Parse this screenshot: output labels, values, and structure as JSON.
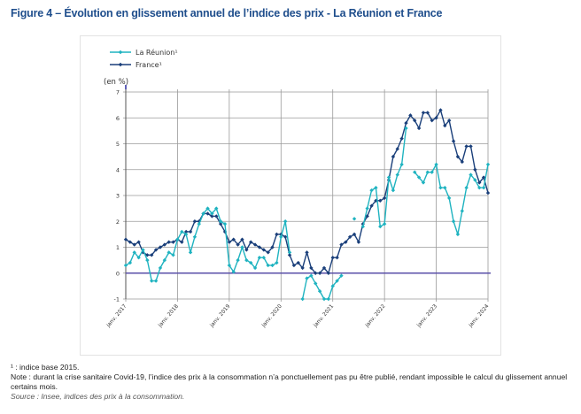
{
  "figure": {
    "title": "Figure 4 – Évolution en glissement annuel de l’indice des prix - La Réunion et France",
    "footnote": "¹ : indice base 2015.",
    "note": "Note : durant la crise sanitaire Covid-19, l’indice des prix à la consommation n’a ponctuellement pas pu être publié, rendant impossible le calcul du glissement annuel certains mois.",
    "source": "Source : Insee, indices des prix à la consommation."
  },
  "chart_data": {
    "type": "line",
    "title": "Évolution en glissement annuel de l’indice des prix - La Réunion et France",
    "ylabel": "(en %)",
    "xlabel": "",
    "ylim": [
      -1,
      7
    ],
    "yticks": [
      -1,
      0,
      1,
      2,
      3,
      4,
      5,
      6,
      7
    ],
    "xticks": [
      "janv. 2017",
      "janv. 2018",
      "janv. 2019",
      "janv. 2020",
      "janv. 2021",
      "janv. 2022",
      "janv. 2023",
      "janv. 2024"
    ],
    "x_start": "2017-01",
    "x_frequency": "monthly",
    "grid": true,
    "legend": "top-left",
    "series": [
      {
        "name": "La Réunion¹",
        "color": "#1fb3c0",
        "values": [
          0.3,
          0.4,
          0.8,
          0.6,
          0.9,
          0.5,
          -0.3,
          -0.3,
          0.2,
          0.5,
          0.8,
          0.7,
          1.3,
          1.6,
          1.5,
          0.8,
          1.4,
          1.9,
          2.3,
          2.5,
          2.3,
          2.5,
          2.0,
          1.9,
          0.3,
          0.05,
          0.5,
          1.0,
          0.5,
          0.4,
          0.2,
          0.6,
          0.6,
          0.3,
          0.3,
          0.4,
          1.4,
          2.0,
          0.8,
          null,
          null,
          -1.0,
          -0.2,
          -0.1,
          -0.4,
          -0.7,
          -1.0,
          -1.0,
          -0.5,
          -0.3,
          -0.1,
          null,
          null,
          2.1,
          null,
          1.8,
          2.5,
          3.2,
          3.3,
          1.8,
          1.9,
          3.7,
          3.2,
          3.8,
          4.2,
          5.6,
          null,
          3.9,
          3.7,
          3.5,
          3.9,
          3.9,
          4.2,
          3.3,
          3.3,
          2.9,
          2.0,
          1.5,
          2.4,
          3.3,
          3.8,
          3.6,
          3.3,
          3.3,
          4.2
        ]
      },
      {
        "name": "France¹",
        "color": "#1a3f7a",
        "values": [
          1.3,
          1.2,
          1.1,
          1.2,
          0.8,
          0.7,
          0.7,
          0.9,
          1.0,
          1.1,
          1.2,
          1.2,
          1.3,
          1.2,
          1.6,
          1.6,
          2.0,
          2.0,
          2.3,
          2.3,
          2.2,
          2.2,
          1.9,
          1.6,
          1.2,
          1.3,
          1.1,
          1.3,
          0.9,
          1.2,
          1.1,
          1.0,
          0.9,
          0.8,
          1.0,
          1.5,
          1.5,
          1.4,
          0.7,
          0.3,
          0.4,
          0.2,
          0.8,
          0.2,
          0.0,
          0.0,
          0.2,
          0.0,
          0.6,
          0.6,
          1.1,
          1.2,
          1.4,
          1.5,
          1.2,
          1.9,
          2.2,
          2.6,
          2.8,
          2.8,
          2.9,
          3.6,
          4.5,
          4.8,
          5.2,
          5.8,
          6.1,
          5.9,
          5.6,
          6.2,
          6.2,
          5.9,
          6.0,
          6.3,
          5.7,
          5.9,
          5.1,
          4.5,
          4.3,
          4.9,
          4.9,
          4.0,
          3.5,
          3.7,
          3.1
        ]
      }
    ],
    "reference_line": {
      "y": 0,
      "color": "#5a4fa8"
    }
  }
}
